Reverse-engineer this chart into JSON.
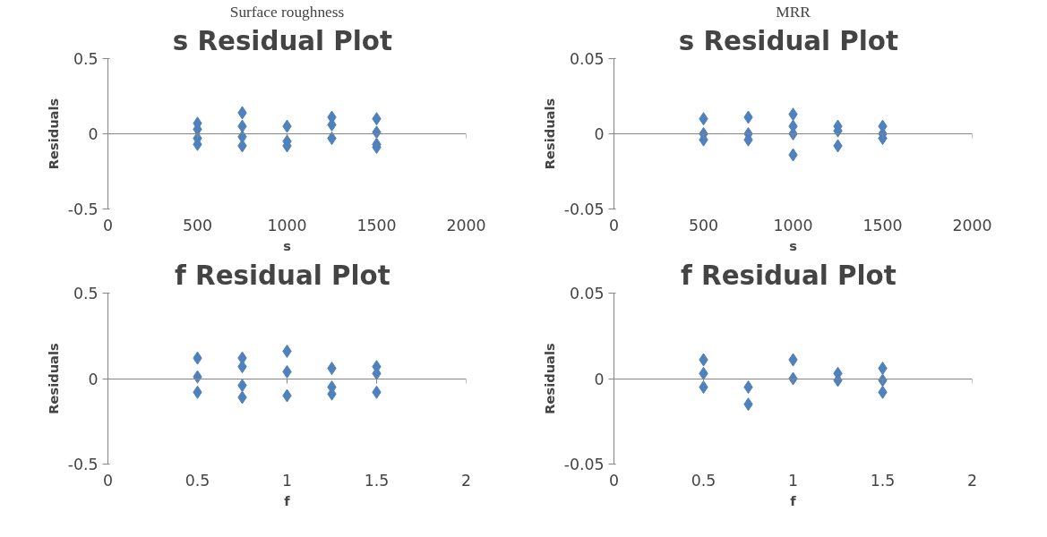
{
  "chart_data": [
    {
      "type": "scatter",
      "title": "s  Residual Plot",
      "annotations": [
        "Surface roughness"
      ],
      "xlabel": "s",
      "ylabel": "Residuals",
      "marker": "diamond",
      "x": [
        500,
        500,
        500,
        500,
        750,
        750,
        750,
        750,
        1000,
        1000,
        1000,
        1250,
        1250,
        1250,
        1500,
        1500,
        1500,
        1500
      ],
      "series": [
        {
          "color": "#4f81bd",
          "values": [
            0.07,
            0.03,
            -0.03,
            -0.07,
            0.14,
            0.05,
            -0.02,
            -0.08,
            0.05,
            -0.05,
            -0.08,
            0.11,
            0.06,
            -0.03,
            0.1,
            0.01,
            -0.07,
            -0.09
          ]
        }
      ],
      "xlim": [
        0,
        2000
      ],
      "xticks": [
        0,
        500,
        1000,
        1500,
        2000
      ],
      "ylim": [
        -0.5,
        0.5
      ],
      "yticks": [
        -0.5,
        0,
        0.5
      ]
    },
    {
      "type": "scatter",
      "title": "s  Residual Plot",
      "annotations": [
        "MRR"
      ],
      "xlabel": "s",
      "ylabel": "Residuals",
      "marker": "diamond",
      "x": [
        500,
        500,
        500,
        750,
        750,
        750,
        1000,
        1000,
        1000,
        1000,
        1250,
        1250,
        1250,
        1500,
        1500,
        1500
      ],
      "series": [
        {
          "color": "#4f81bd",
          "values": [
            0.01,
            0,
            -0.004,
            0.011,
            0,
            -0.004,
            0.013,
            0.005,
            0,
            -0.014,
            0.005,
            0.002,
            -0.008,
            0.005,
            0,
            -0.003
          ]
        }
      ],
      "xlim": [
        0,
        2000
      ],
      "xticks": [
        0,
        500,
        1000,
        1500,
        2000
      ],
      "ylim": [
        -0.05,
        0.05
      ],
      "yticks": [
        -0.05,
        0,
        0.05
      ]
    },
    {
      "type": "scatter",
      "title": "f  Residual Plot",
      "xlabel": "f",
      "ylabel": "Residuals",
      "marker": "diamond",
      "x": [
        0.5,
        0.5,
        0.5,
        0.75,
        0.75,
        0.75,
        0.75,
        1,
        1,
        1,
        1.25,
        1.25,
        1.25,
        1.5,
        1.5,
        1.5
      ],
      "series": [
        {
          "color": "#4f81bd",
          "values": [
            0.12,
            0.01,
            -0.08,
            0.12,
            0.07,
            -0.04,
            -0.11,
            0.16,
            0.04,
            -0.1,
            0.06,
            -0.05,
            -0.09,
            0.07,
            0.03,
            -0.08
          ]
        }
      ],
      "xlim": [
        0,
        2
      ],
      "xticks": [
        0,
        0.5,
        1,
        1.5,
        2
      ],
      "ylim": [
        -0.5,
        0.5
      ],
      "yticks": [
        -0.5,
        0,
        0.5
      ]
    },
    {
      "type": "scatter",
      "title": "f  Residual Plot",
      "xlabel": "f",
      "ylabel": "Residuals",
      "marker": "diamond",
      "x": [
        0.5,
        0.5,
        0.5,
        0.75,
        0.75,
        1,
        1,
        1.25,
        1.25,
        1.5,
        1.5,
        1.5
      ],
      "series": [
        {
          "color": "#4f81bd",
          "values": [
            0.011,
            0.003,
            -0.005,
            -0.005,
            -0.015,
            0.011,
            0,
            0.003,
            -0.001,
            0.006,
            -0.001,
            -0.008
          ]
        }
      ],
      "xlim": [
        0,
        2
      ],
      "xticks": [
        0,
        0.5,
        1,
        1.5,
        2
      ],
      "ylim": [
        -0.05,
        0.05
      ],
      "yticks": [
        -0.05,
        0,
        0.05
      ]
    }
  ]
}
